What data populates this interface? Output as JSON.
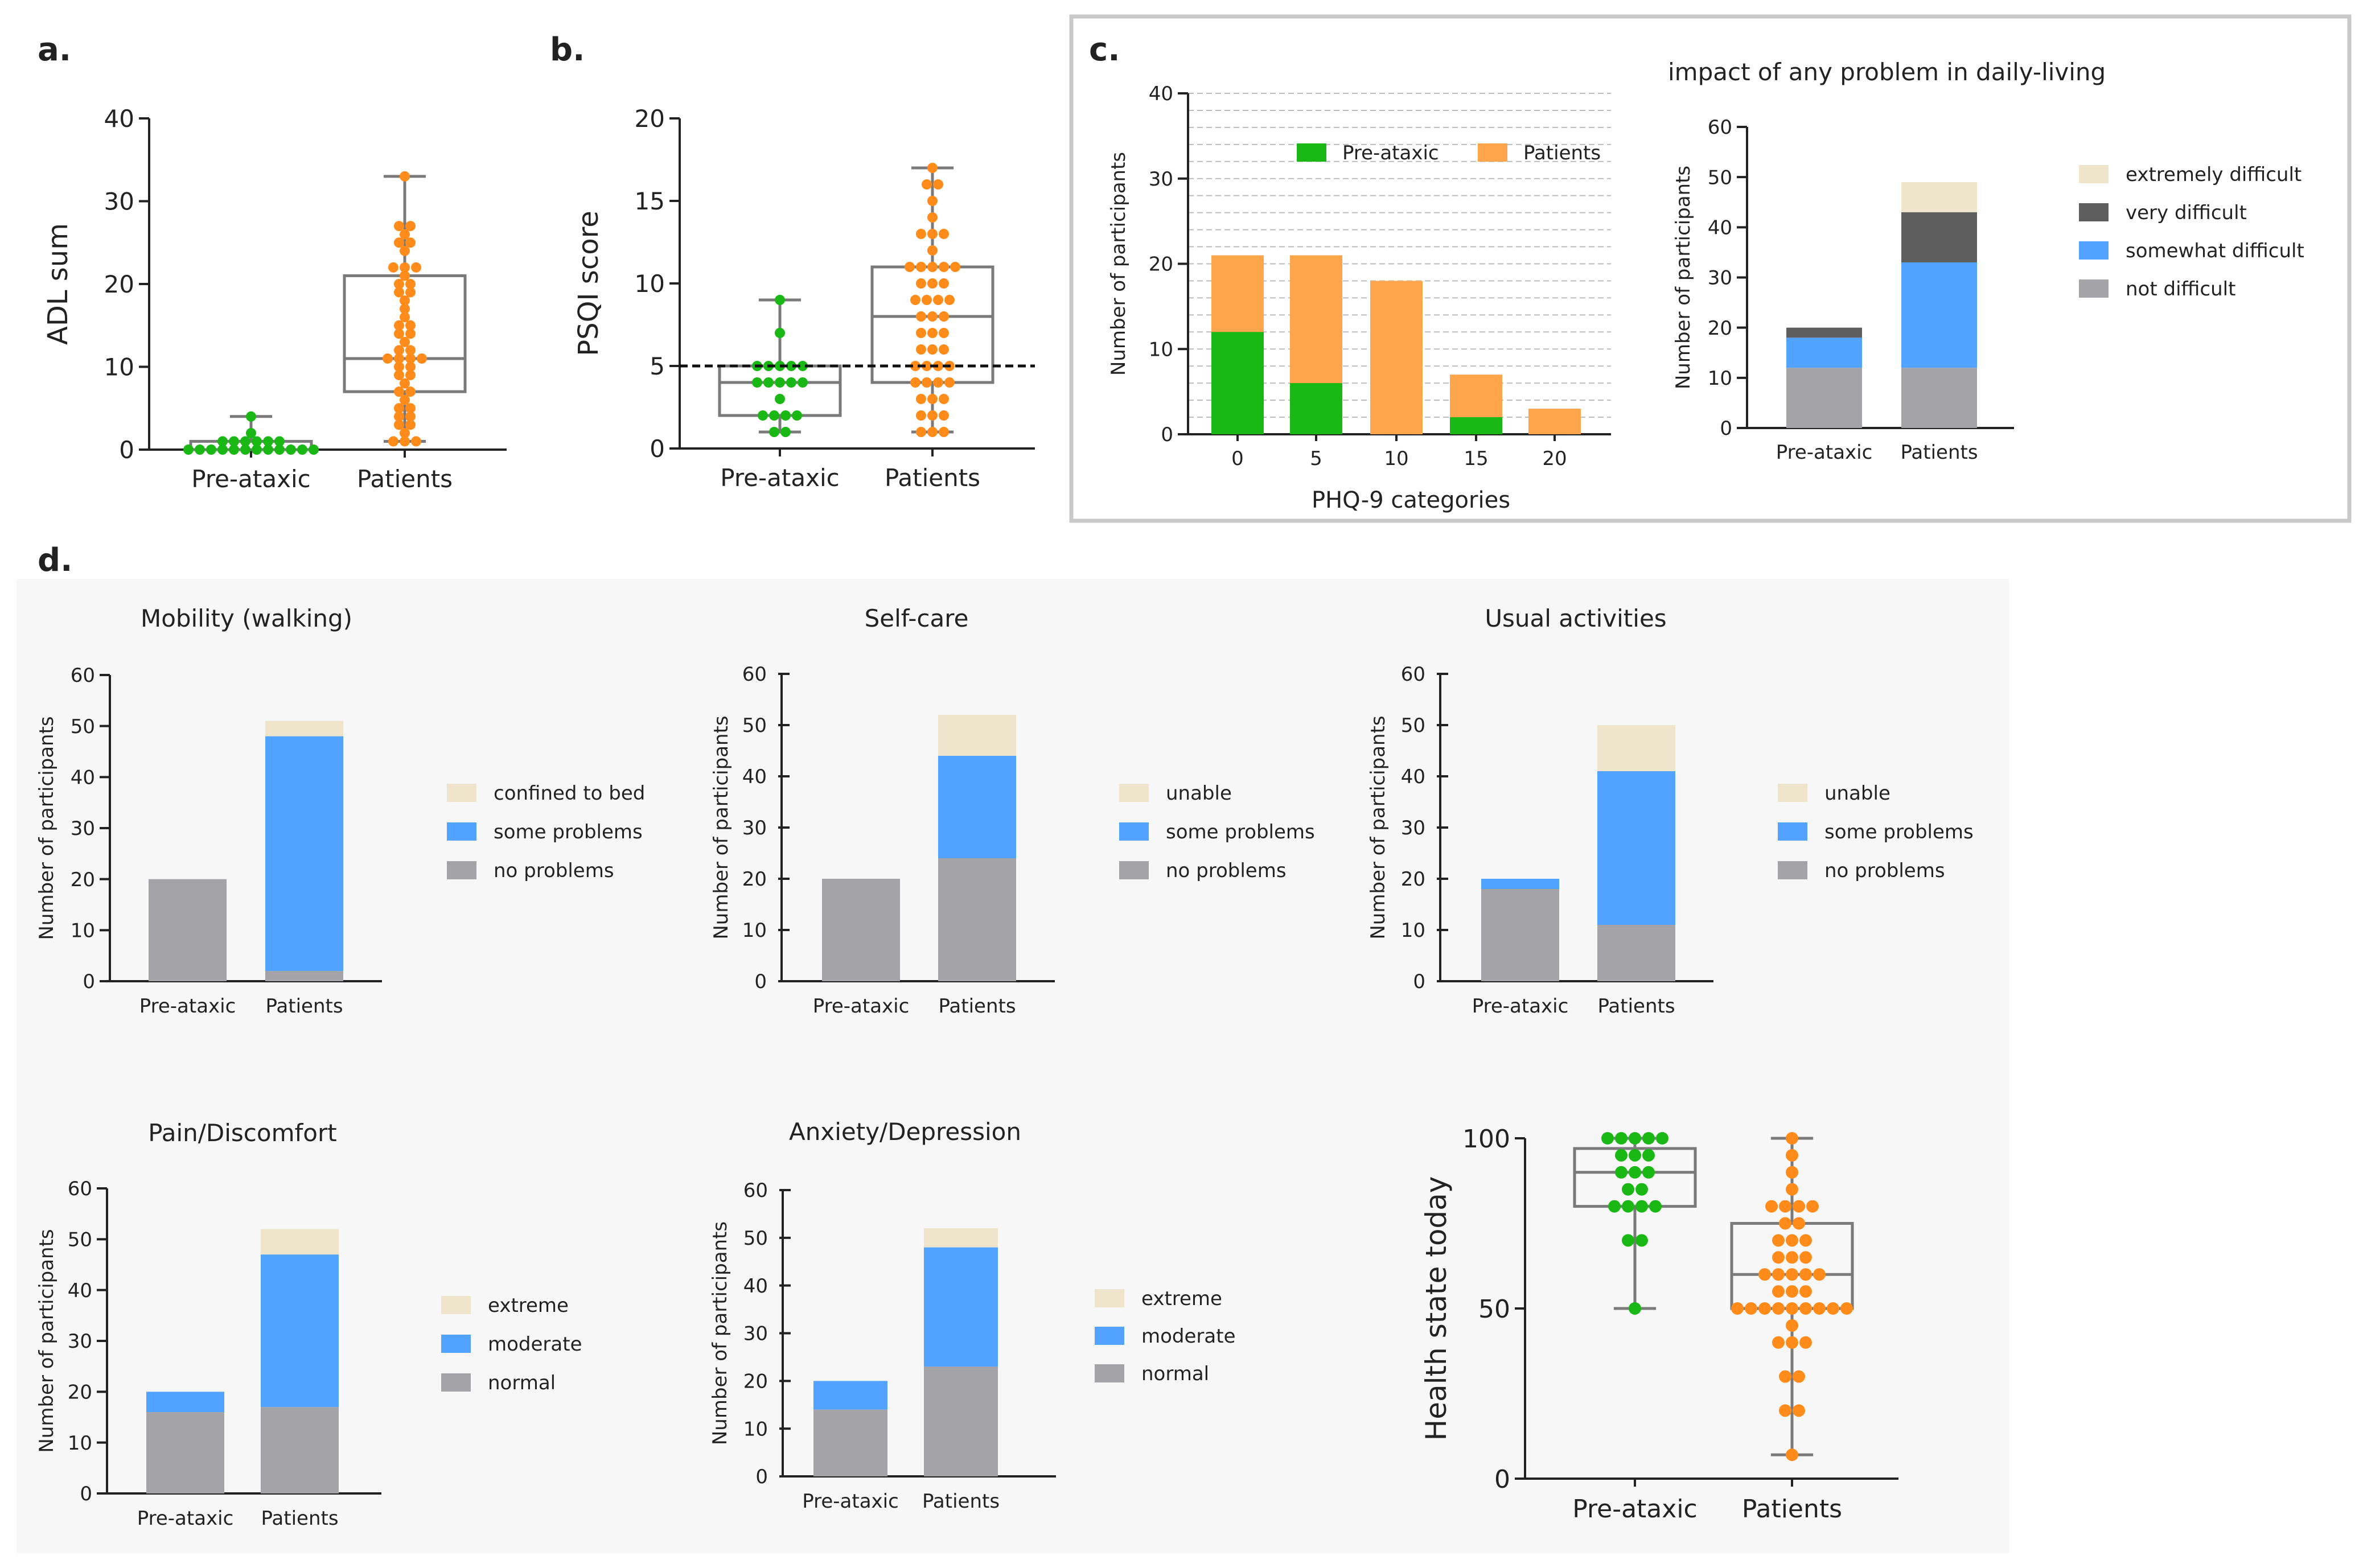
{
  "panel_letters": {
    "a": "a.",
    "b": "b.",
    "c": "c.",
    "d": "d."
  },
  "colors": {
    "green": "#1ab814",
    "orange": "#ff8c1a",
    "bar_orange": "#ffa64d",
    "gray": "#a3a3a8",
    "blue": "#52a3ff",
    "cream": "#eee5cc",
    "dark": "#5e5e5e",
    "axis": "#222222",
    "box_line": "#7a7a7a",
    "panel_bg": "#f7f7f7",
    "frame": "#c9c9c9",
    "grid": "#bbbbbb"
  },
  "chart_data": [
    {
      "id": "a",
      "type": "box-dot",
      "ylabel": "ADL sum",
      "yticks": [
        0,
        10,
        20,
        30,
        40
      ],
      "ylim": [
        0,
        40
      ],
      "categories": [
        "Pre-ataxic",
        "Patients"
      ],
      "groups": [
        {
          "name": "Pre-ataxic",
          "color": "green",
          "box": {
            "min": 0,
            "q1": 0,
            "median": 0,
            "q3": 1,
            "max": 4
          },
          "points": [
            4,
            2,
            1,
            1,
            1,
            1,
            1,
            1,
            0,
            0,
            0,
            0,
            0,
            0,
            0,
            0,
            0,
            0,
            0,
            0
          ]
        },
        {
          "name": "Patients",
          "color": "orange",
          "box": {
            "min": 1,
            "q1": 7,
            "median": 11,
            "q3": 21,
            "max": 33
          },
          "points": [
            33,
            27,
            27,
            26,
            25,
            25,
            24,
            22,
            22,
            22,
            21,
            20,
            20,
            19,
            19,
            18,
            17,
            16,
            15,
            15,
            14,
            14,
            13,
            12,
            12,
            11,
            11,
            11,
            11,
            10,
            10,
            9,
            9,
            8,
            7,
            7,
            6,
            5,
            5,
            4,
            4,
            3,
            3,
            2,
            1,
            1,
            1
          ]
        }
      ]
    },
    {
      "id": "b",
      "type": "box-dot",
      "ylabel": "PSQI score",
      "yticks": [
        0,
        5,
        10,
        15,
        20
      ],
      "ylim": [
        0,
        20
      ],
      "reference_line": 5,
      "categories": [
        "Pre-ataxic",
        "Patients"
      ],
      "groups": [
        {
          "name": "Pre-ataxic",
          "color": "green",
          "box": {
            "min": 1,
            "q1": 2,
            "median": 4,
            "q3": 5,
            "max": 9
          },
          "points": [
            9,
            7,
            5,
            5,
            5,
            5,
            5,
            4,
            4,
            4,
            4,
            4,
            3,
            2,
            2,
            2,
            2,
            1,
            1
          ]
        },
        {
          "name": "Patients",
          "color": "orange",
          "box": {
            "min": 1,
            "q1": 4,
            "median": 8,
            "q3": 11,
            "max": 17
          },
          "points": [
            17,
            16,
            16,
            15,
            14,
            13,
            13,
            13,
            12,
            11,
            11,
            11,
            11,
            11,
            10,
            10,
            10,
            9,
            9,
            9,
            9,
            8,
            8,
            8,
            7,
            7,
            7,
            6,
            6,
            6,
            5,
            5,
            5,
            5,
            4,
            4,
            4,
            4,
            3,
            3,
            3,
            2,
            2,
            2,
            1,
            1,
            1
          ]
        }
      ]
    },
    {
      "id": "c1",
      "type": "bar",
      "xlabel": "PHQ-9 categories",
      "ylabel": "Number of participants",
      "yticks": [
        0,
        10,
        20,
        30,
        40
      ],
      "ylim": [
        0,
        40
      ],
      "categories": [
        "0",
        "5",
        "10",
        "15",
        "20"
      ],
      "series": [
        {
          "name": "Patients",
          "color": "bar_orange",
          "values": [
            21,
            21,
            18,
            7,
            3
          ]
        },
        {
          "name": "Pre-ataxic",
          "color": "green",
          "values": [
            12,
            6,
            0,
            2,
            0
          ]
        }
      ],
      "legend": [
        "Pre-ataxic",
        "Patients"
      ]
    },
    {
      "id": "c2",
      "type": "stacked-bar",
      "title": "impact of any problem in daily-living",
      "ylabel": "Number of participants",
      "yticks": [
        0,
        10,
        20,
        30,
        40,
        50,
        60
      ],
      "ylim": [
        0,
        60
      ],
      "categories": [
        "Pre-ataxic",
        "Patients"
      ],
      "series": [
        {
          "name": "not difficult",
          "color": "gray",
          "values": [
            12,
            12
          ]
        },
        {
          "name": "somewhat difficult",
          "color": "blue",
          "values": [
            6,
            21
          ]
        },
        {
          "name": "very difficult",
          "color": "dark",
          "values": [
            2,
            10
          ]
        },
        {
          "name": "extremely difficult",
          "color": "cream",
          "values": [
            0,
            6
          ]
        }
      ]
    },
    {
      "id": "d1",
      "type": "stacked-bar",
      "title": "Mobility (walking)",
      "ylabel": "Number of participants",
      "yticks": [
        0,
        10,
        20,
        30,
        40,
        50,
        60
      ],
      "ylim": [
        0,
        60
      ],
      "categories": [
        "Pre-ataxic",
        "Patients"
      ],
      "series": [
        {
          "name": "no problems",
          "color": "gray",
          "values": [
            20,
            2
          ]
        },
        {
          "name": "some problems",
          "color": "blue",
          "values": [
            0,
            46
          ]
        },
        {
          "name": "confined to bed",
          "color": "cream",
          "values": [
            0,
            3
          ]
        }
      ]
    },
    {
      "id": "d2",
      "type": "stacked-bar",
      "title": "Self-care",
      "ylabel": "Number of participants",
      "yticks": [
        0,
        10,
        20,
        30,
        40,
        50,
        60
      ],
      "ylim": [
        0,
        60
      ],
      "categories": [
        "Pre-ataxic",
        "Patients"
      ],
      "series": [
        {
          "name": "no problems",
          "color": "gray",
          "values": [
            20,
            24
          ]
        },
        {
          "name": "some problems",
          "color": "blue",
          "values": [
            0,
            20
          ]
        },
        {
          "name": "unable",
          "color": "cream",
          "values": [
            0,
            8
          ]
        }
      ]
    },
    {
      "id": "d3",
      "type": "stacked-bar",
      "title": "Usual activities",
      "ylabel": "Number of participants",
      "yticks": [
        0,
        10,
        20,
        30,
        40,
        50,
        60
      ],
      "ylim": [
        0,
        60
      ],
      "categories": [
        "Pre-ataxic",
        "Patients"
      ],
      "series": [
        {
          "name": "no problems",
          "color": "gray",
          "values": [
            18,
            11
          ]
        },
        {
          "name": "some problems",
          "color": "blue",
          "values": [
            2,
            30
          ]
        },
        {
          "name": "unable",
          "color": "cream",
          "values": [
            0,
            9
          ]
        }
      ]
    },
    {
      "id": "d4",
      "type": "stacked-bar",
      "title": "Pain/Discomfort",
      "ylabel": "Number of participants",
      "yticks": [
        0,
        10,
        20,
        30,
        40,
        50,
        60
      ],
      "ylim": [
        0,
        60
      ],
      "categories": [
        "Pre-ataxic",
        "Patients"
      ],
      "series": [
        {
          "name": "normal",
          "color": "gray",
          "values": [
            16,
            17
          ]
        },
        {
          "name": "moderate",
          "color": "blue",
          "values": [
            4,
            30
          ]
        },
        {
          "name": "extreme",
          "color": "cream",
          "values": [
            0,
            5
          ]
        }
      ]
    },
    {
      "id": "d5",
      "type": "stacked-bar",
      "title": "Anxiety/Depression",
      "ylabel": "Number of participants",
      "yticks": [
        0,
        10,
        20,
        30,
        40,
        50,
        60
      ],
      "ylim": [
        0,
        60
      ],
      "categories": [
        "Pre-ataxic",
        "Patients"
      ],
      "series": [
        {
          "name": "normal",
          "color": "gray",
          "values": [
            14,
            23
          ]
        },
        {
          "name": "moderate",
          "color": "blue",
          "values": [
            6,
            25
          ]
        },
        {
          "name": "extreme",
          "color": "cream",
          "values": [
            0,
            4
          ]
        }
      ]
    },
    {
      "id": "d6",
      "type": "box-dot",
      "ylabel": "Health state today",
      "yticks": [
        0,
        50,
        100
      ],
      "ylim": [
        0,
        100
      ],
      "categories": [
        "Pre-ataxic",
        "Patients"
      ],
      "groups": [
        {
          "name": "Pre-ataxic",
          "color": "green",
          "box": {
            "min": 50,
            "q1": 80,
            "median": 90,
            "q3": 97,
            "max": 100
          },
          "points": [
            100,
            100,
            100,
            100,
            100,
            95,
            95,
            95,
            90,
            90,
            90,
            85,
            85,
            80,
            80,
            80,
            80,
            70,
            70,
            50
          ]
        },
        {
          "name": "Patients",
          "color": "orange",
          "box": {
            "min": 7,
            "q1": 50,
            "median": 60,
            "q3": 75,
            "max": 100
          },
          "points": [
            100,
            95,
            90,
            85,
            80,
            80,
            80,
            80,
            75,
            75,
            70,
            70,
            70,
            65,
            65,
            65,
            60,
            60,
            60,
            60,
            60,
            55,
            55,
            55,
            50,
            50,
            50,
            50,
            50,
            50,
            50,
            50,
            50,
            45,
            40,
            40,
            40,
            30,
            30,
            20,
            20,
            7
          ]
        }
      ]
    }
  ]
}
